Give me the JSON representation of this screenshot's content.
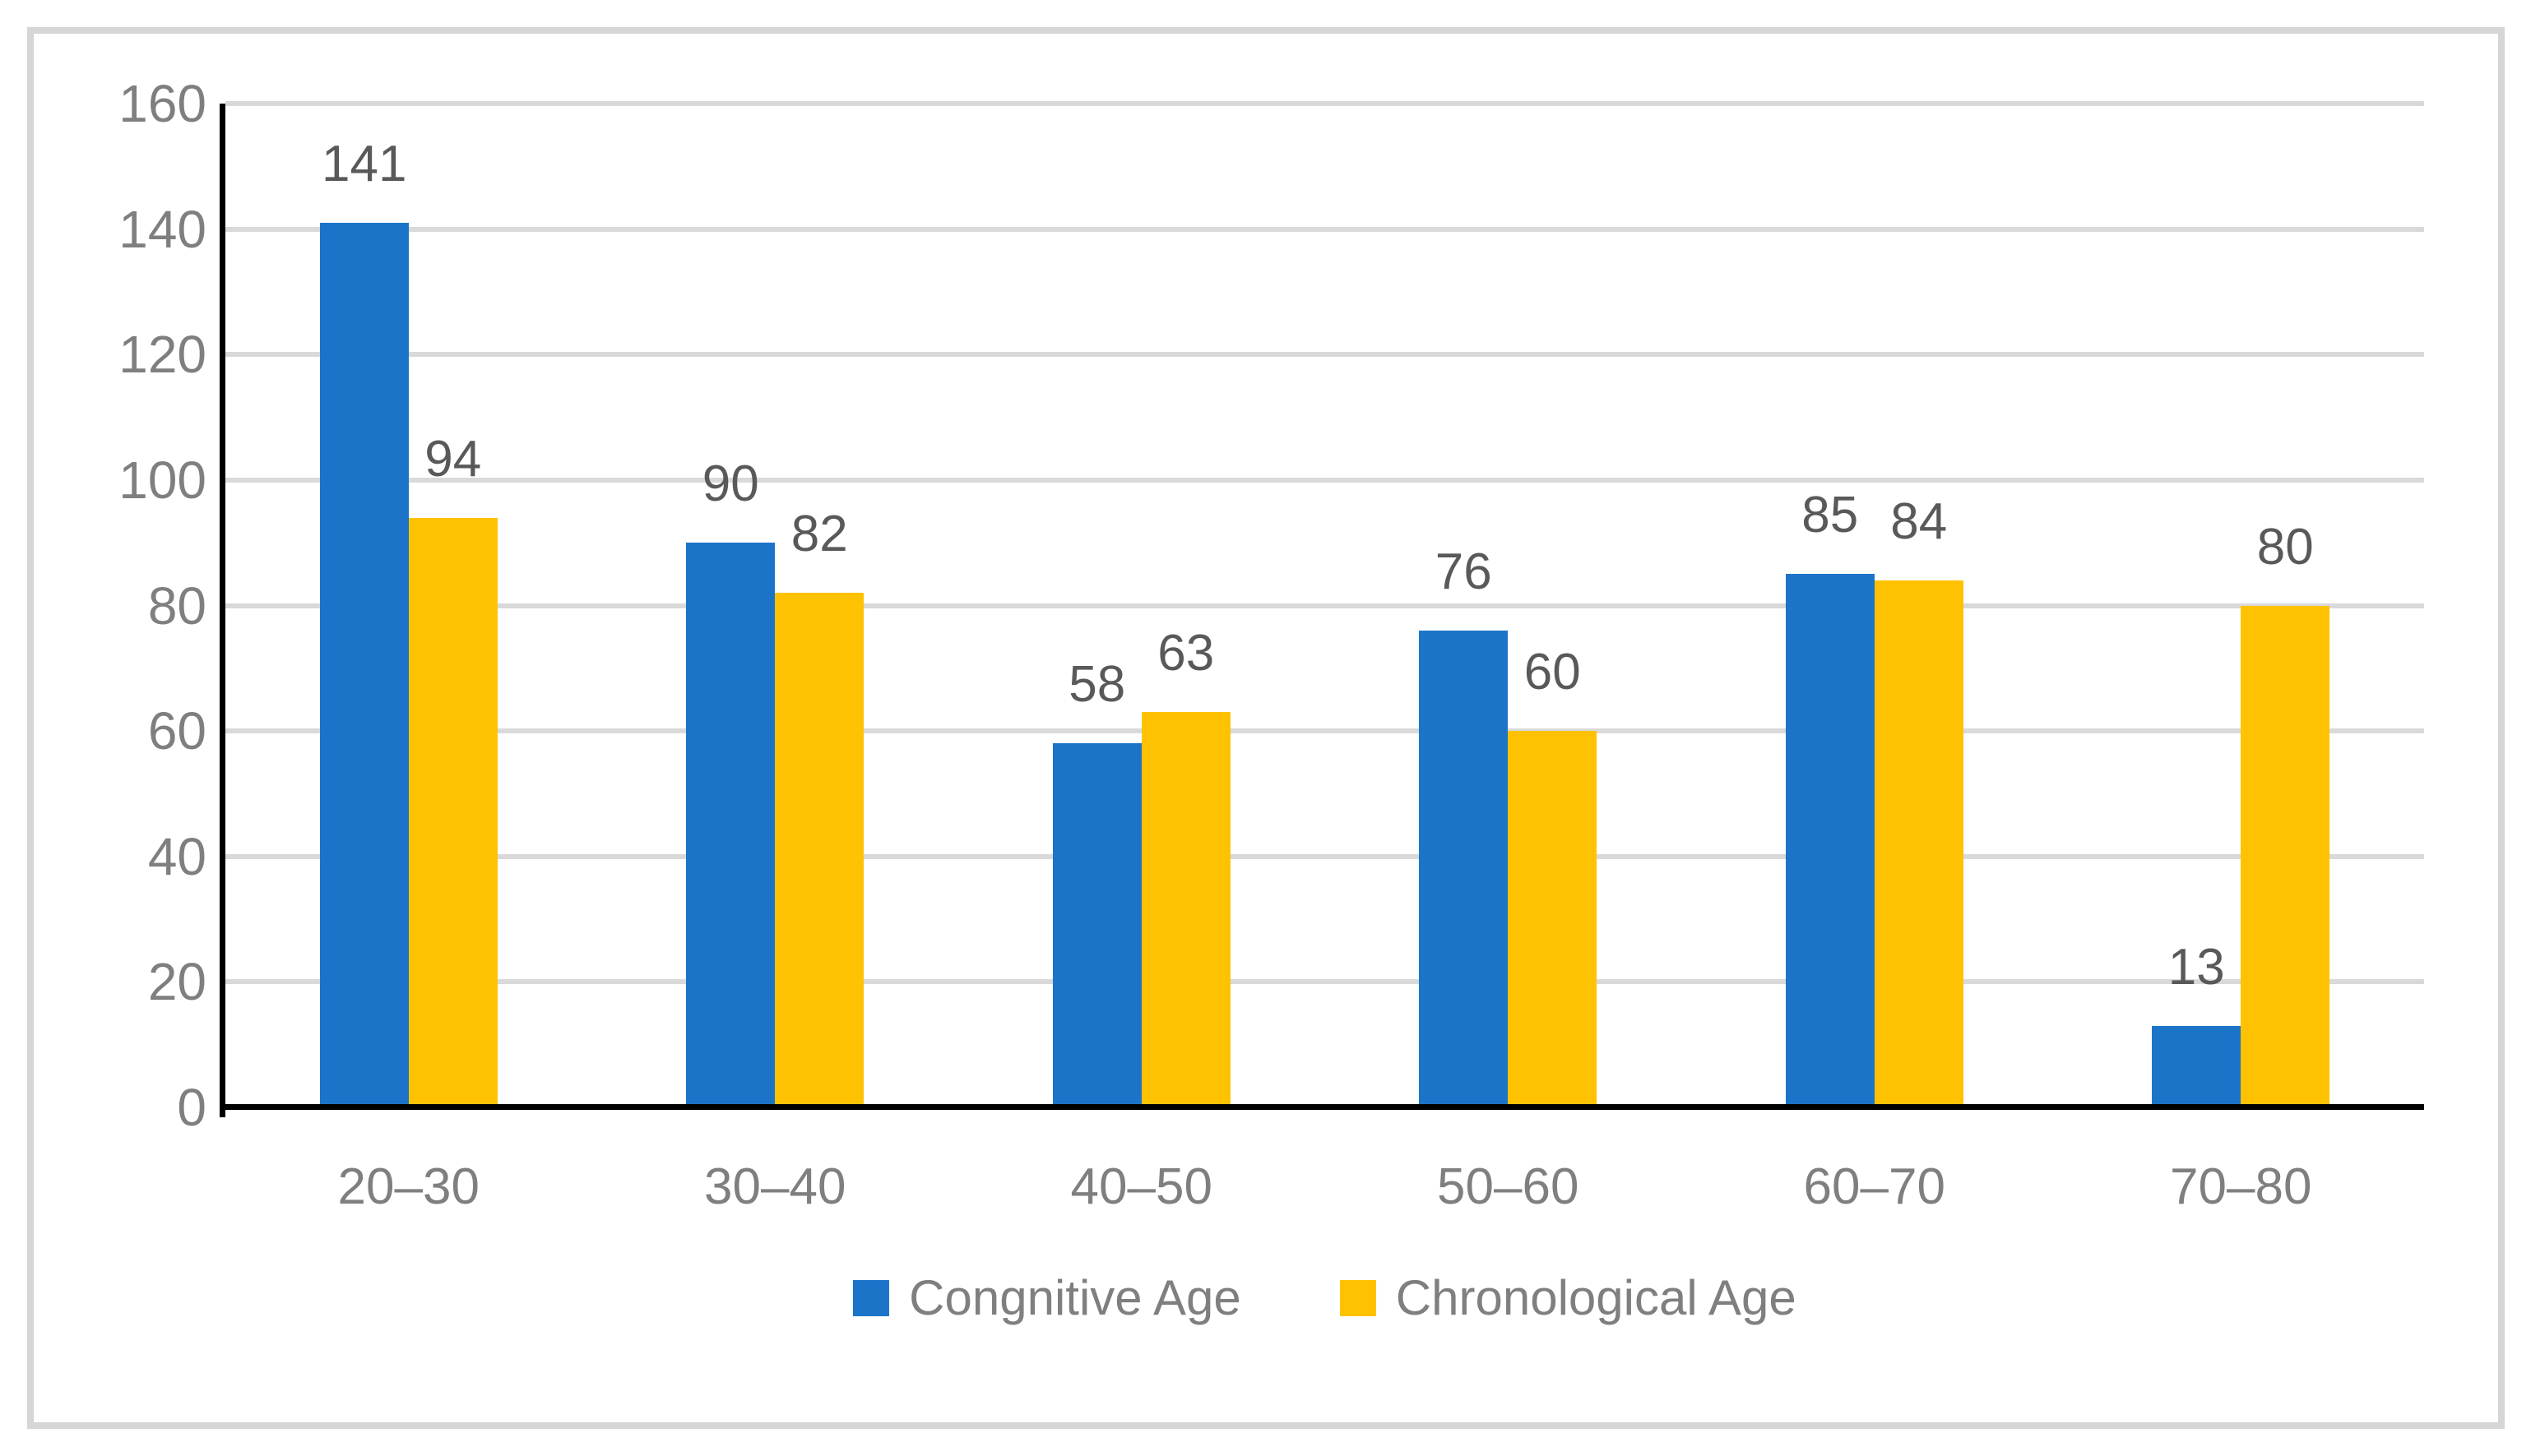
{
  "chart_data": {
    "type": "bar",
    "title": "",
    "xlabel": "",
    "ylabel": "",
    "categories": [
      "20–30",
      "30–40",
      "40–50",
      "50–60",
      "60–70",
      "70–80"
    ],
    "series": [
      {
        "name": "Congnitive Age",
        "color": "#1b74c8",
        "values": [
          141,
          90,
          58,
          76,
          85,
          13
        ]
      },
      {
        "name": "Chronological Age",
        "color": "#ffc203",
        "values": [
          94,
          82,
          63,
          60,
          84,
          80
        ]
      }
    ],
    "ylim": [
      0,
      160
    ],
    "yticks": [
      0,
      20,
      40,
      60,
      80,
      100,
      120,
      140,
      160
    ],
    "grid": true,
    "data_labels": true,
    "legend_position": "bottom"
  },
  "palette": {
    "gridline": "#d9d9d9",
    "axis_line": "#000000",
    "tick_text": "#7f7f7f",
    "data_label_text": "#595959",
    "legend_text": "#7f7f7f",
    "frame_border": "#d6d6d6",
    "background": "#ffffff"
  }
}
